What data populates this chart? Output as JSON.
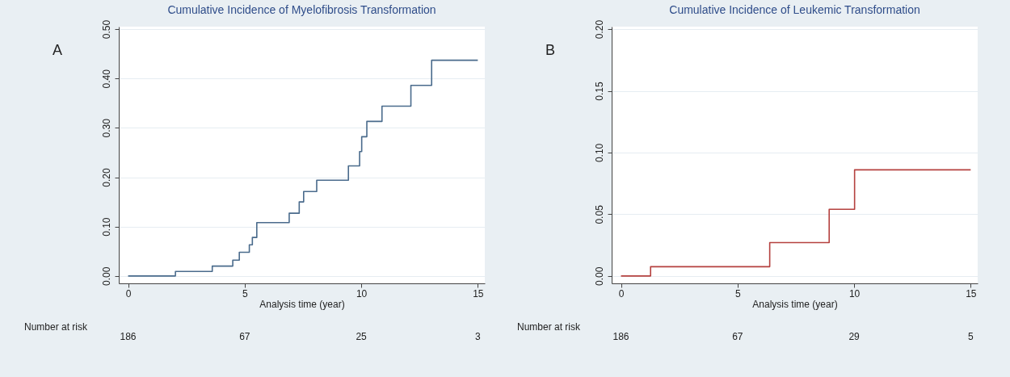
{
  "chart_data": [
    {
      "type": "step",
      "title": "Cumulative Incidence of Myelofibrosis Transformation",
      "xlabel": "Analysis time (year)",
      "series": [
        {
          "color": "#4a6b8c",
          "x": [
            0,
            2.03,
            3.61,
            4.49,
            4.77,
            5.2,
            5.33,
            5.52,
            6.91,
            7.34,
            7.53,
            8.09,
            9.45,
            9.93,
            10.02,
            10.24,
            10.89,
            12.13,
            13.02,
            15
          ],
          "values": [
            0,
            0.009,
            0.02,
            0.032,
            0.048,
            0.063,
            0.078,
            0.108,
            0.127,
            0.15,
            0.171,
            0.194,
            0.223,
            0.252,
            0.282,
            0.313,
            0.344,
            0.386,
            0.437,
            0.437
          ]
        }
      ],
      "xlim": [
        -0.4,
        15.3
      ],
      "xticks": [
        0,
        5,
        10,
        15
      ],
      "ylim": [
        -0.015,
        0.505
      ],
      "yticks": [
        {
          "value": 0,
          "label": "0.00"
        },
        {
          "value": 0.1,
          "label": "0.10"
        },
        {
          "value": 0.2,
          "label": "0.20"
        },
        {
          "value": 0.3,
          "label": "0.30"
        },
        {
          "value": 0.4,
          "label": "0.40"
        },
        {
          "value": 0.5,
          "label": "0.50"
        }
      ],
      "grid": "y",
      "annotations": [
        "A",
        "Number at risk",
        "186",
        "67",
        "25",
        "3"
      ]
    },
    {
      "type": "step",
      "title": "Cumulative Incidence of Leukemic Transformation",
      "xlabel": "Analysis time (year)",
      "series": [
        {
          "color": "#b5413f",
          "x": [
            0,
            1.27,
            6.38,
            8.93,
            10.02,
            15
          ],
          "values": [
            0,
            0.0075,
            0.027,
            0.054,
            0.086,
            0.086
          ]
        }
      ],
      "xlim": [
        -0.4,
        15.3
      ],
      "xticks": [
        0,
        5,
        10,
        15
      ],
      "ylim": [
        -0.006,
        0.202
      ],
      "yticks": [
        {
          "value": 0,
          "label": "0.00"
        },
        {
          "value": 0.05,
          "label": "0.05"
        },
        {
          "value": 0.1,
          "label": "0.10"
        },
        {
          "value": 0.15,
          "label": "0.15"
        },
        {
          "value": 0.2,
          "label": "0.20"
        }
      ],
      "grid": "y",
      "annotations": [
        "B",
        "Number at risk",
        "186",
        "67",
        "29",
        "5"
      ]
    }
  ]
}
